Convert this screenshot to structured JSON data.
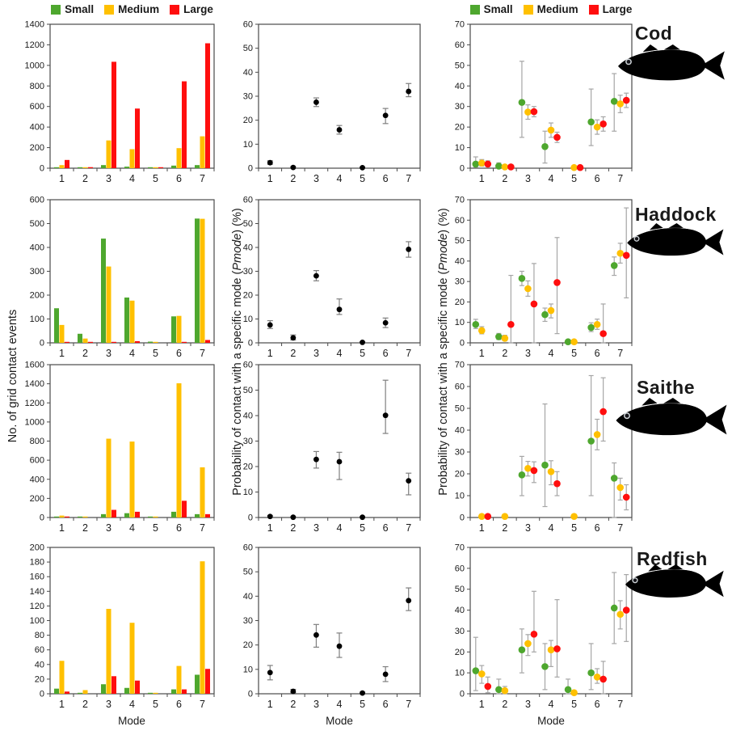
{
  "legend": {
    "items": [
      {
        "label": "Small",
        "color": "#4ea72e"
      },
      {
        "label": "Medium",
        "color": "#ffc000"
      },
      {
        "label": "Large",
        "color": "#ff0e0e"
      }
    ]
  },
  "axis_labels": {
    "count_y": "No. of grid contact events",
    "prob_prefix": "Probability of contact with a specific mode (",
    "prob_italic": "Pmode",
    "prob_suffix": ") (%)",
    "x": "Mode"
  },
  "species": [
    "Cod",
    "Haddock",
    "Saithe",
    "Redfish"
  ],
  "chart_data": [
    {
      "species": "Cod",
      "panel": {
        "row": 0,
        "col": 0
      },
      "type": "bar",
      "title": "Cod grid contact events",
      "ylim": [
        0,
        1400
      ],
      "ytick": 200,
      "categories": [
        "1",
        "2",
        "3",
        "4",
        "5",
        "6",
        "7"
      ],
      "series": [
        {
          "name": "Small",
          "values": [
            4,
            1,
            30,
            15,
            1,
            25,
            30
          ]
        },
        {
          "name": "Medium",
          "values": [
            30,
            2,
            270,
            185,
            2,
            195,
            310
          ]
        },
        {
          "name": "Large",
          "values": [
            80,
            10,
            1035,
            580,
            8,
            845,
            1215
          ]
        }
      ]
    },
    {
      "species": "Cod",
      "panel": {
        "row": 0,
        "col": 1
      },
      "type": "dots",
      "title": "Cod Pmode all sizes",
      "ylim": [
        0,
        60
      ],
      "ytick": 10,
      "categories": [
        "1",
        "2",
        "3",
        "4",
        "5",
        "6",
        "7"
      ],
      "points": [
        [
          2.3,
          1.6,
          3.1
        ],
        [
          0.3,
          0.1,
          0.7
        ],
        [
          27.5,
          25.7,
          29.3
        ],
        [
          16,
          14.2,
          17.8
        ],
        [
          0.2,
          0,
          0.5
        ],
        [
          22,
          18.6,
          24.9
        ],
        [
          32,
          29.8,
          35.3
        ]
      ]
    },
    {
      "species": "Cod",
      "panel": {
        "row": 0,
        "col": 2
      },
      "type": "groupdots",
      "title": "Cod Pmode by size",
      "ylim": [
        0,
        70
      ],
      "ytick": 10,
      "categories": [
        "1",
        "2",
        "3",
        "4",
        "5",
        "6",
        "7"
      ],
      "series": [
        {
          "name": "Small",
          "points": [
            [
              2,
              0.5,
              5.5
            ],
            [
              1,
              0.2,
              2.6
            ],
            [
              32,
              15,
              52
            ],
            [
              10.5,
              2.5,
              18
            ],
            null,
            [
              22.5,
              11,
              38.5
            ],
            [
              32.5,
              18,
              46
            ]
          ]
        },
        {
          "name": "Medium",
          "points": [
            [
              2.5,
              1,
              4.2
            ],
            [
              0.6,
              0,
              1.6
            ],
            [
              27.3,
              23.8,
              30.8
            ],
            [
              18.5,
              15,
              22
            ],
            [
              0.3,
              0,
              1
            ],
            [
              20,
              16.5,
              23.5
            ],
            [
              31.3,
              27,
              35.5
            ]
          ]
        },
        {
          "name": "Large",
          "points": [
            [
              2,
              0.8,
              3.6
            ],
            [
              0.6,
              0,
              1.6
            ],
            [
              27.5,
              25,
              30
            ],
            [
              15,
              12.5,
              17.5
            ],
            [
              0.3,
              0,
              1
            ],
            [
              21.5,
              18,
              25
            ],
            [
              33,
              29.5,
              36.5
            ]
          ]
        }
      ]
    },
    {
      "species": "Haddock",
      "panel": {
        "row": 1,
        "col": 0
      },
      "type": "bar",
      "title": "Haddock grid contact events",
      "ylim": [
        0,
        600
      ],
      "ytick": 100,
      "categories": [
        "1",
        "2",
        "3",
        "4",
        "5",
        "6",
        "7"
      ],
      "series": [
        {
          "name": "Small",
          "values": [
            145,
            38,
            437,
            190,
            5,
            111,
            521
          ]
        },
        {
          "name": "Medium",
          "values": [
            75,
            18,
            320,
            177,
            1,
            113,
            520
          ]
        },
        {
          "name": "Large",
          "values": [
            1,
            3,
            4,
            7,
            0,
            1,
            12
          ]
        }
      ]
    },
    {
      "species": "Haddock",
      "panel": {
        "row": 1,
        "col": 1
      },
      "type": "dots",
      "title": "Haddock Pmode all sizes",
      "ylim": [
        0,
        60
      ],
      "ytick": 10,
      "categories": [
        "1",
        "2",
        "3",
        "4",
        "5",
        "6",
        "7"
      ],
      "points": [
        [
          7.5,
          6,
          9.3
        ],
        [
          2.1,
          1.2,
          3.3
        ],
        [
          28.1,
          26,
          30.3
        ],
        [
          14,
          11.9,
          18.4
        ],
        [
          0.2,
          0,
          0.5
        ],
        [
          8.4,
          6.4,
          10.4
        ],
        [
          39.2,
          35.9,
          42.4
        ]
      ]
    },
    {
      "species": "Haddock",
      "panel": {
        "row": 1,
        "col": 2
      },
      "type": "groupdots",
      "title": "Haddock Pmode by size",
      "ylim": [
        0,
        70
      ],
      "ytick": 10,
      "categories": [
        "1",
        "2",
        "3",
        "4",
        "5",
        "6",
        "7"
      ],
      "series": [
        {
          "name": "Small",
          "points": [
            [
              9,
              7,
              11.5
            ],
            [
              3,
              1.6,
              4.6
            ],
            [
              31.5,
              28,
              35
            ],
            [
              13.8,
              10.5,
              17
            ],
            [
              0.5,
              0,
              1.3
            ],
            [
              7.5,
              5.5,
              9.8
            ],
            [
              37.8,
              33,
              42
            ]
          ]
        },
        {
          "name": "Medium",
          "points": [
            [
              6,
              4.4,
              7.9
            ],
            [
              2.2,
              1,
              3.7
            ],
            [
              26.5,
              22.8,
              30.3
            ],
            [
              15.8,
              12.2,
              19
            ],
            [
              0.5,
              0,
              1.3
            ],
            [
              9,
              6.6,
              11.6
            ],
            [
              43.8,
              39,
              48.7
            ]
          ]
        },
        {
          "name": "Large",
          "points": [
            null,
            [
              9,
              0,
              33
            ],
            [
              19,
              0,
              38.8
            ],
            [
              29.5,
              4.5,
              51.5
            ],
            null,
            [
              4.5,
              0,
              19
            ],
            [
              42.8,
              22,
              66
            ]
          ]
        }
      ]
    },
    {
      "species": "Saithe",
      "panel": {
        "row": 2,
        "col": 0
      },
      "type": "bar",
      "title": "Saithe grid contact events",
      "ylim": [
        0,
        1600
      ],
      "ytick": 200,
      "categories": [
        "1",
        "2",
        "3",
        "4",
        "5",
        "6",
        "7"
      ],
      "series": [
        {
          "name": "Small",
          "values": [
            3,
            1,
            35,
            45,
            1,
            60,
            35
          ]
        },
        {
          "name": "Medium",
          "values": [
            20,
            1,
            825,
            795,
            5,
            1405,
            525
          ]
        },
        {
          "name": "Large",
          "values": [
            1,
            0,
            80,
            60,
            0,
            175,
            35
          ]
        }
      ]
    },
    {
      "species": "Saithe",
      "panel": {
        "row": 2,
        "col": 1
      },
      "type": "dots",
      "title": "Saithe Pmode all sizes",
      "ylim": [
        0,
        60
      ],
      "ytick": 10,
      "categories": [
        "1",
        "2",
        "3",
        "4",
        "5",
        "6",
        "7"
      ],
      "points": [
        [
          0.4,
          0.1,
          0.8
        ],
        [
          0.1,
          0,
          0.3
        ],
        [
          22.8,
          19.4,
          25.9
        ],
        [
          21.9,
          14.9,
          25.6
        ],
        [
          0.1,
          0,
          0.3
        ],
        [
          40.1,
          33,
          53.9
        ],
        [
          14.4,
          8.9,
          17.4
        ]
      ]
    },
    {
      "species": "Saithe",
      "panel": {
        "row": 2,
        "col": 2
      },
      "type": "groupdots",
      "title": "Saithe Pmode by size",
      "ylim": [
        0,
        70
      ],
      "ytick": 10,
      "categories": [
        "1",
        "2",
        "3",
        "4",
        "5",
        "6",
        "7"
      ],
      "series": [
        {
          "name": "Small",
          "points": [
            null,
            null,
            [
              19.5,
              10,
              28
            ],
            [
              24,
              5,
              52
            ],
            null,
            [
              35,
              10,
              65
            ],
            [
              18,
              0,
              25
            ]
          ]
        },
        {
          "name": "Medium",
          "points": [
            [
              0.5,
              0,
              1.4
            ],
            [
              0.5,
              0,
              1.4
            ],
            [
              22.5,
              19,
              25.7
            ],
            [
              21,
              15,
              26
            ],
            [
              0.5,
              0,
              1.4
            ],
            [
              38,
              31,
              45
            ],
            [
              13.7,
              8,
              18
            ]
          ]
        },
        {
          "name": "Large",
          "points": [
            [
              0.5,
              0,
              1.4
            ],
            null,
            [
              21.5,
              16,
              25.5
            ],
            [
              15.5,
              10,
              21
            ],
            null,
            [
              48.5,
              35,
              64
            ],
            [
              9.3,
              3.5,
              15
            ]
          ]
        }
      ]
    },
    {
      "species": "Redfish",
      "panel": {
        "row": 3,
        "col": 0
      },
      "type": "bar",
      "title": "Redfish grid contact events",
      "ylim": [
        0,
        200
      ],
      "ytick": 20,
      "categories": [
        "1",
        "2",
        "3",
        "4",
        "5",
        "6",
        "7"
      ],
      "series": [
        {
          "name": "Small",
          "values": [
            7,
            1,
            13,
            8,
            1,
            6,
            26
          ]
        },
        {
          "name": "Medium",
          "values": [
            45,
            5,
            116,
            97,
            1,
            38,
            181
          ]
        },
        {
          "name": "Large",
          "values": [
            3,
            0,
            24,
            18,
            0,
            6,
            34
          ]
        }
      ]
    },
    {
      "species": "Redfish",
      "panel": {
        "row": 3,
        "col": 1
      },
      "type": "dots",
      "title": "Redfish Pmode all sizes",
      "ylim": [
        0,
        60
      ],
      "ytick": 10,
      "categories": [
        "1",
        "2",
        "3",
        "4",
        "5",
        "6",
        "7"
      ],
      "points": [
        [
          8.7,
          5.7,
          11.6
        ],
        [
          1,
          0.4,
          1.8
        ],
        [
          24.1,
          19.1,
          28.4
        ],
        [
          19.5,
          14.9,
          24.9
        ],
        [
          0.3,
          0,
          0.7
        ],
        [
          8,
          5,
          11.1
        ],
        [
          38.2,
          34.1,
          43.4
        ]
      ]
    },
    {
      "species": "Redfish",
      "panel": {
        "row": 3,
        "col": 2
      },
      "type": "groupdots",
      "title": "Redfish Pmode by size",
      "ylim": [
        0,
        70
      ],
      "ytick": 10,
      "categories": [
        "1",
        "2",
        "3",
        "4",
        "5",
        "6",
        "7"
      ],
      "series": [
        {
          "name": "Small",
          "points": [
            [
              11,
              1.5,
              27
            ],
            [
              2,
              0,
              7
            ],
            [
              21,
              10,
              31
            ],
            [
              13,
              2,
              24
            ],
            [
              2,
              0,
              7
            ],
            [
              10,
              2,
              24
            ],
            [
              41,
              24,
              58
            ]
          ]
        },
        {
          "name": "Medium",
          "points": [
            [
              9.5,
              5,
              13.5
            ],
            [
              1.5,
              0,
              3.5
            ],
            [
              24,
              18.3,
              28.3
            ],
            [
              21,
              13,
              25.5
            ],
            [
              0.5,
              0,
              1.5
            ],
            [
              8,
              5,
              12
            ],
            [
              38,
              31,
              44.5
            ]
          ]
        },
        {
          "name": "Large",
          "points": [
            [
              3.5,
              0.5,
              8
            ],
            null,
            [
              28.5,
              20,
              49
            ],
            [
              21.5,
              8,
              45
            ],
            null,
            [
              7,
              0,
              15.5
            ],
            [
              40,
              25,
              57
            ]
          ]
        }
      ]
    }
  ]
}
